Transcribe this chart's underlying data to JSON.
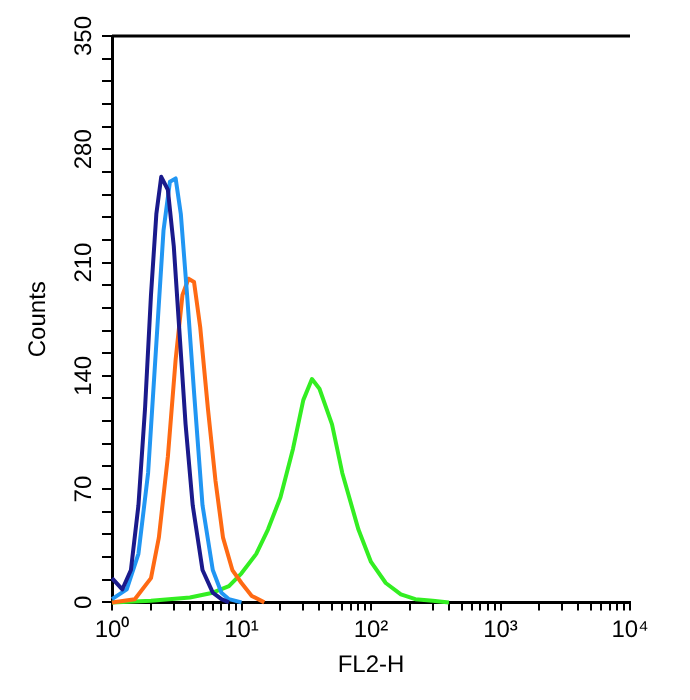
{
  "chart_data": {
    "type": "line",
    "xlabel": "FL2-H",
    "ylabel": "Counts",
    "log": "x",
    "grid": false,
    "legend": false,
    "marker": "none",
    "line_style": "solid",
    "xlim": [
      1,
      10000
    ],
    "xticks": [
      {
        "value": 1,
        "label": "10⁰"
      },
      {
        "value": 2,
        "label": null
      },
      {
        "value": 3,
        "label": null
      },
      {
        "value": 4,
        "label": null
      },
      {
        "value": 5,
        "label": null
      },
      {
        "value": 6,
        "label": null
      },
      {
        "value": 7,
        "label": null
      },
      {
        "value": 8,
        "label": null
      },
      {
        "value": 9,
        "label": null
      },
      {
        "value": 10,
        "label": "10¹"
      },
      {
        "value": 20,
        "label": null
      },
      {
        "value": 30,
        "label": null
      },
      {
        "value": 40,
        "label": null
      },
      {
        "value": 50,
        "label": null
      },
      {
        "value": 60,
        "label": null
      },
      {
        "value": 70,
        "label": null
      },
      {
        "value": 80,
        "label": null
      },
      {
        "value": 90,
        "label": null
      },
      {
        "value": 100,
        "label": "10²"
      },
      {
        "value": 200,
        "label": null
      },
      {
        "value": 300,
        "label": null
      },
      {
        "value": 400,
        "label": null
      },
      {
        "value": 500,
        "label": null
      },
      {
        "value": 600,
        "label": null
      },
      {
        "value": 700,
        "label": null
      },
      {
        "value": 800,
        "label": null
      },
      {
        "value": 900,
        "label": null
      },
      {
        "value": 1000,
        "label": "10³"
      },
      {
        "value": 2000,
        "label": null
      },
      {
        "value": 3000,
        "label": null
      },
      {
        "value": 4000,
        "label": null
      },
      {
        "value": 5000,
        "label": null
      },
      {
        "value": 6000,
        "label": null
      },
      {
        "value": 7000,
        "label": null
      },
      {
        "value": 8000,
        "label": null
      },
      {
        "value": 9000,
        "label": null
      },
      {
        "value": 10000,
        "label": "10⁴"
      }
    ],
    "ylim": [
      0,
      350
    ],
    "yticks": [
      0,
      {
        "value": 14,
        "label": null
      },
      {
        "value": 28,
        "label": null
      },
      {
        "value": 42,
        "label": null
      },
      {
        "value": 56,
        "label": null
      },
      70,
      {
        "value": 84,
        "label": null
      },
      {
        "value": 98,
        "label": null
      },
      {
        "value": 112,
        "label": null
      },
      {
        "value": 126,
        "label": null
      },
      140,
      {
        "value": 154,
        "label": null
      },
      {
        "value": 168,
        "label": null
      },
      {
        "value": 182,
        "label": null
      },
      {
        "value": 196,
        "label": null
      },
      210,
      {
        "value": 224,
        "label": null
      },
      {
        "value": 238,
        "label": null
      },
      {
        "value": 252,
        "label": null
      },
      {
        "value": 266,
        "label": null
      },
      280,
      {
        "value": 294,
        "label": null
      },
      {
        "value": 308,
        "label": null
      },
      {
        "value": 322,
        "label": null
      },
      {
        "value": 336,
        "label": null
      },
      350
    ],
    "series": [
      {
        "color": "#1a1a8c",
        "x": [
          1,
          1.2,
          1.4,
          1.6,
          1.8,
          2.0,
          2.2,
          2.4,
          2.7,
          3.0,
          3.3,
          3.7,
          4.2,
          5,
          6,
          7,
          8
        ],
        "values": [
          15,
          8,
          20,
          60,
          120,
          190,
          240,
          263,
          255,
          220,
          170,
          110,
          60,
          20,
          6,
          2,
          0
        ]
      },
      {
        "color": "#2196f3",
        "x": [
          1,
          1.3,
          1.6,
          1.9,
          2.2,
          2.5,
          2.8,
          3.1,
          3.4,
          3.8,
          4.3,
          5,
          6,
          7,
          8,
          10
        ],
        "values": [
          2,
          8,
          30,
          80,
          160,
          230,
          260,
          262,
          240,
          190,
          130,
          60,
          20,
          6,
          2,
          0
        ]
      },
      {
        "color": "#ff6a13",
        "x": [
          1,
          1.5,
          2,
          2.3,
          2.7,
          3.1,
          3.5,
          3.9,
          4.3,
          4.8,
          5.5,
          6.3,
          7.2,
          8.5,
          10,
          12,
          15
        ],
        "values": [
          0,
          2,
          15,
          40,
          90,
          150,
          190,
          200,
          198,
          170,
          120,
          75,
          40,
          20,
          12,
          4,
          0
        ]
      },
      {
        "color": "#33ee22",
        "x": [
          1,
          2,
          4,
          6,
          8,
          10,
          13,
          16,
          20,
          25,
          30,
          35,
          40,
          50,
          60,
          80,
          100,
          130,
          170,
          220,
          300,
          400
        ],
        "values": [
          0,
          1,
          3,
          6,
          10,
          18,
          30,
          45,
          65,
          95,
          125,
          138,
          132,
          110,
          80,
          45,
          25,
          12,
          5,
          2,
          1,
          0
        ]
      }
    ]
  }
}
